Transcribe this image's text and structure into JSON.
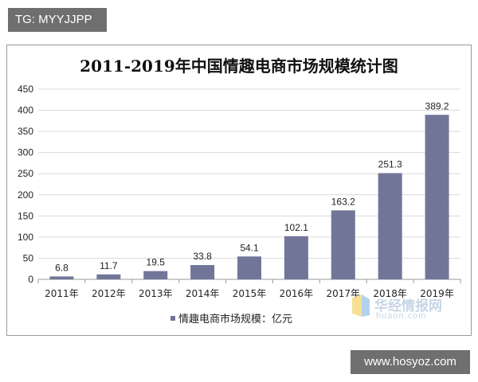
{
  "watermark_tag": "TG: MYYJJPP",
  "source_site": "www.hosyoz.com",
  "watermark_brand": {
    "cn": "华经情报网",
    "url": "huaon.com"
  },
  "colors": {
    "bar": "#717699",
    "grid": "#d9d9d9",
    "axis": "#9a9a9a"
  },
  "chart_data": {
    "type": "bar",
    "title": "2011-2019年中国情趣电商市场规模统计图",
    "categories": [
      "2011年",
      "2012年",
      "2013年",
      "2014年",
      "2015年",
      "2016年",
      "2017年",
      "2018年",
      "2019年"
    ],
    "series": [
      {
        "name": "情趣电商市场规模：亿元",
        "values": [
          6.8,
          11.7,
          19.5,
          33.8,
          54.1,
          102.1,
          163.2,
          251.3,
          389.2
        ]
      }
    ],
    "value_labels": [
      "6.8",
      "11.7",
      "19.5",
      "33.8",
      "54.1",
      "102.1",
      "163.2",
      "251.3",
      "389.2"
    ],
    "ylim": [
      0,
      450
    ],
    "yticks": [
      "0",
      "50",
      "100",
      "150",
      "200",
      "250",
      "300",
      "350",
      "400",
      "450"
    ],
    "grid": true,
    "legend_position": "bottom"
  }
}
